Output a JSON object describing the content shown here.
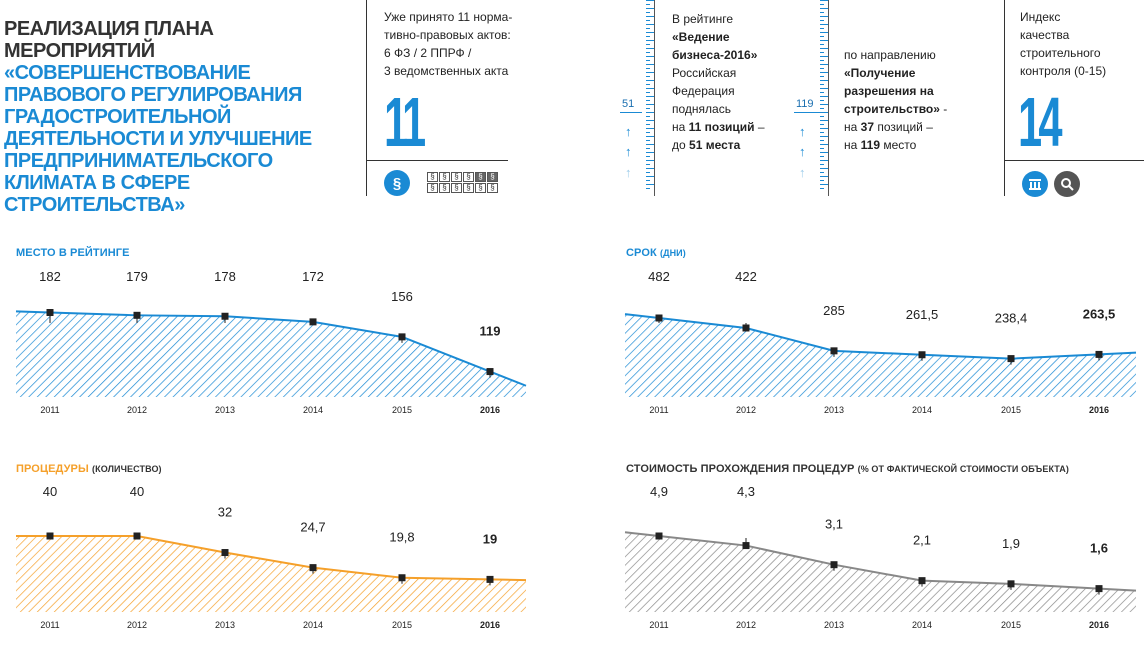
{
  "header": {
    "title_line1": "РЕАЛИЗАЦИЯ ПЛАНА МЕРОПРИЯТИЙ",
    "title_line2": "«СОВЕРШЕНСТВОВАНИЕ ПРАВОВОГО РЕГУЛИРОВАНИЯ ГРАДОСТРОИТЕЛЬНОЙ ДЕЯТЕЛЬНОСТИ И УЛУЧШЕНИЕ ПРЕДПРИНИМАТЕЛЬСКОГО КЛИМАТА В СФЕРЕ СТРОИТЕЛЬСТВА»"
  },
  "acts": {
    "text_line1": "Уже принято 11 норма-",
    "text_line2": "тивно-правовых актов:",
    "text_line3": "6 ФЗ / 2 ППРФ /",
    "text_line4": "3 ведомственных акта",
    "big_number": "11",
    "circle_symbol": "§",
    "paragraph_symbol": "§"
  },
  "rating": {
    "scale_label_left": "51",
    "text_line1": "В рейтинге",
    "text_line2": "«Ведение",
    "text_line3": "бизнеса-2016»",
    "text_line4": "Российская",
    "text_line5": "Федерация",
    "text_line6": "поднялась",
    "text_line7_pre": "на ",
    "text_line7_bold": "11 позиций",
    "text_line7_post": " –",
    "text_line8_pre": "до ",
    "text_line8_bold": "51 места",
    "scale_label_right": "119",
    "dir_line1": "по направлению",
    "dir_line2": "«Получение",
    "dir_line3": "разрешения на",
    "dir_line4": "строительство»",
    "dir_line4_post": " -",
    "dir_line5_pre": "на ",
    "dir_line5_bold": "37",
    "dir_line5_post": " позиций –",
    "dir_line6_pre": "на ",
    "dir_line6_bold": "119",
    "dir_line6_post": " место"
  },
  "index": {
    "text_line1": "Индекс",
    "text_line2": "качества",
    "text_line3": "строительного",
    "text_line4": "контроля (0-15)",
    "big_number": "14",
    "icon_left": "building-icon",
    "icon_right": "magnifier-icon",
    "colors": {
      "blue": "#1a8ad4",
      "grey": "#555555"
    }
  },
  "chart_data": [
    {
      "type": "area",
      "title": "МЕСТО В РЕЙТИНГЕ",
      "subtitle": "",
      "categories": [
        "2011",
        "2012",
        "2013",
        "2014",
        "2015",
        "2016"
      ],
      "values": [
        182,
        179,
        178,
        172,
        156,
        119
      ],
      "value_labels": [
        "182",
        "179",
        "178",
        "172",
        "156",
        "119"
      ],
      "bold_last": true,
      "color": "#1a8ad4"
    },
    {
      "type": "area",
      "title": "СРОК",
      "subtitle": "(ДНИ)",
      "categories": [
        "2011",
        "2012",
        "2013",
        "2014",
        "2015",
        "2016"
      ],
      "values": [
        482,
        422,
        285,
        261.5,
        238.4,
        263.5
      ],
      "value_labels": [
        "482",
        "422",
        "285",
        "261,5",
        "238,4",
        "263,5"
      ],
      "bold_last": true,
      "color": "#1a8ad4"
    },
    {
      "type": "area",
      "title": "ПРОЦЕДУРЫ",
      "subtitle": "(КОЛИЧЕСТВО)",
      "categories": [
        "2011",
        "2012",
        "2013",
        "2014",
        "2015",
        "2016"
      ],
      "values": [
        40,
        40,
        32,
        24.7,
        19.8,
        19
      ],
      "value_labels": [
        "40",
        "40",
        "32",
        "24,7",
        "19,8",
        "19"
      ],
      "bold_last": true,
      "color": "#f5a02a"
    },
    {
      "type": "area",
      "title": "СТОИМОСТЬ ПРОХОЖДЕНИЯ ПРОЦЕДУР",
      "subtitle": "(% ОТ ФАКТИЧЕСКОЙ СТОИМОСТИ ОБЪЕКТА)",
      "categories": [
        "2011",
        "2012",
        "2013",
        "2014",
        "2015",
        "2016"
      ],
      "values": [
        4.9,
        4.3,
        3.1,
        2.1,
        1.9,
        1.6
      ],
      "value_labels": [
        "4,9",
        "4,3",
        "3,1",
        "2,1",
        "1,9",
        "1,6"
      ],
      "bold_last": true,
      "color": "#888888"
    }
  ]
}
